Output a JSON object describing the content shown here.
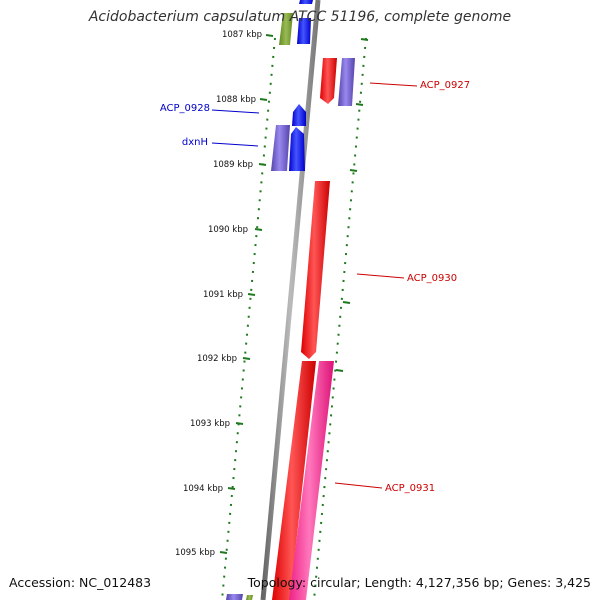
{
  "title": "Acidobacterium capsulatum ATCC 51196, complete genome",
  "footer": {
    "accession": "Accession: NC_012483",
    "topology": "Topology: circular; Length: 4,127,356 bp; Genes: 3,425"
  },
  "ticks": [
    "1087 kbp",
    "1088 kbp",
    "1089 kbp",
    "1090 kbp",
    "1091 kbp",
    "1092 kbp",
    "1093 kbp",
    "1094 kbp",
    "1095 kbp"
  ],
  "gene_labels": [
    {
      "text": "ACP_0927",
      "color": "#cc0000"
    },
    {
      "text": "ACP_0928",
      "color": "#0000cc"
    },
    {
      "text": "dxnH",
      "color": "#0000cc"
    },
    {
      "text": "ACP_0930",
      "color": "#cc0000"
    },
    {
      "text": "ACP_0931",
      "color": "#cc0000"
    }
  ],
  "colors": {
    "backbone": "#888888",
    "tick_mark": "#1f7a1f",
    "red_gene": "#ff0000",
    "blue_gene": "#0000ff",
    "purple_gene": "#6655cc",
    "pink_gene": "#ff3399",
    "olive_gene": "#779933"
  }
}
